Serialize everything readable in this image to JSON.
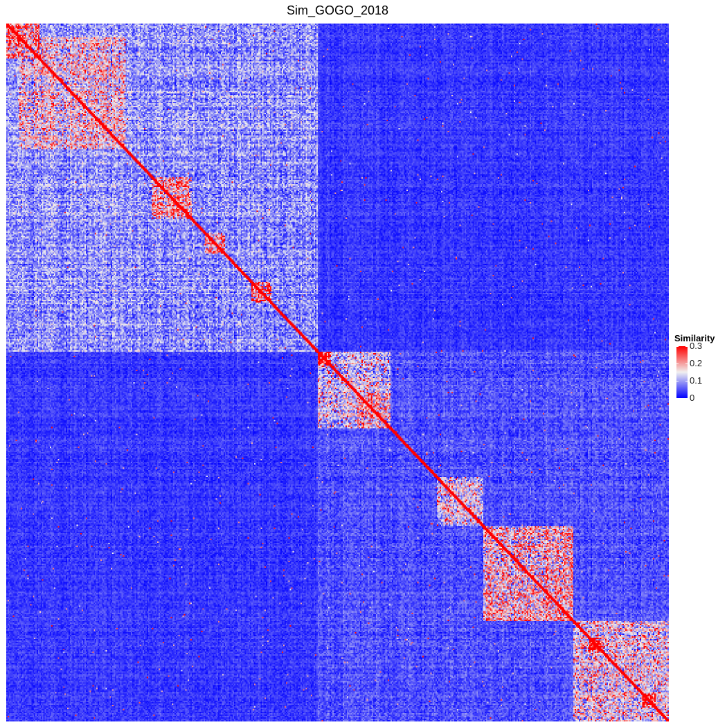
{
  "chart_data": {
    "type": "heatmap",
    "title": "Sim_GOGO_2018",
    "xlabel": "",
    "ylabel": "",
    "legend": {
      "title": "Similarity",
      "position": "right",
      "breaks": [
        {
          "value": 0,
          "label": "0"
        },
        {
          "value": 0.1,
          "label": "0.1"
        },
        {
          "value": 0.2,
          "label": "0.2"
        },
        {
          "value": 0.3,
          "label": "0.3"
        }
      ]
    },
    "color_scale": {
      "low": "#0000ff",
      "mid": "#f0f0f0",
      "high": "#ff0000",
      "midpoint": 0.15,
      "limits": [
        0,
        0.3
      ]
    },
    "grid": false,
    "n_terms": 500,
    "blocks": [
      {
        "start": 0.0,
        "end": 0.47,
        "mean": 0.09
      },
      {
        "start": 0.47,
        "end": 1.0,
        "mean": 0.05
      },
      {
        "start": 0.72,
        "end": 0.855,
        "mean": 0.17
      },
      {
        "start": 0.855,
        "end": 1.0,
        "mean": 0.14
      },
      {
        "start": 0.0,
        "end": 0.05,
        "mean": 0.2
      },
      {
        "start": 0.02,
        "end": 0.18,
        "mean": 0.14
      },
      {
        "start": 0.47,
        "end": 0.58,
        "mean": 0.12
      },
      {
        "start": 0.53,
        "end": 0.58,
        "mean": 0.17
      },
      {
        "start": 0.65,
        "end": 0.72,
        "mean": 0.13
      },
      {
        "start": 0.22,
        "end": 0.28,
        "mean": 0.18
      },
      {
        "start": 0.3,
        "end": 0.33,
        "mean": 0.2
      },
      {
        "start": 0.37,
        "end": 0.4,
        "mean": 0.22
      },
      {
        "start": 0.47,
        "end": 0.49,
        "mean": 0.3
      },
      {
        "start": 0.88,
        "end": 0.9,
        "mean": 0.3
      },
      {
        "start": 0.96,
        "end": 0.98,
        "mean": 0.3
      }
    ],
    "diagonal": 0.3
  }
}
